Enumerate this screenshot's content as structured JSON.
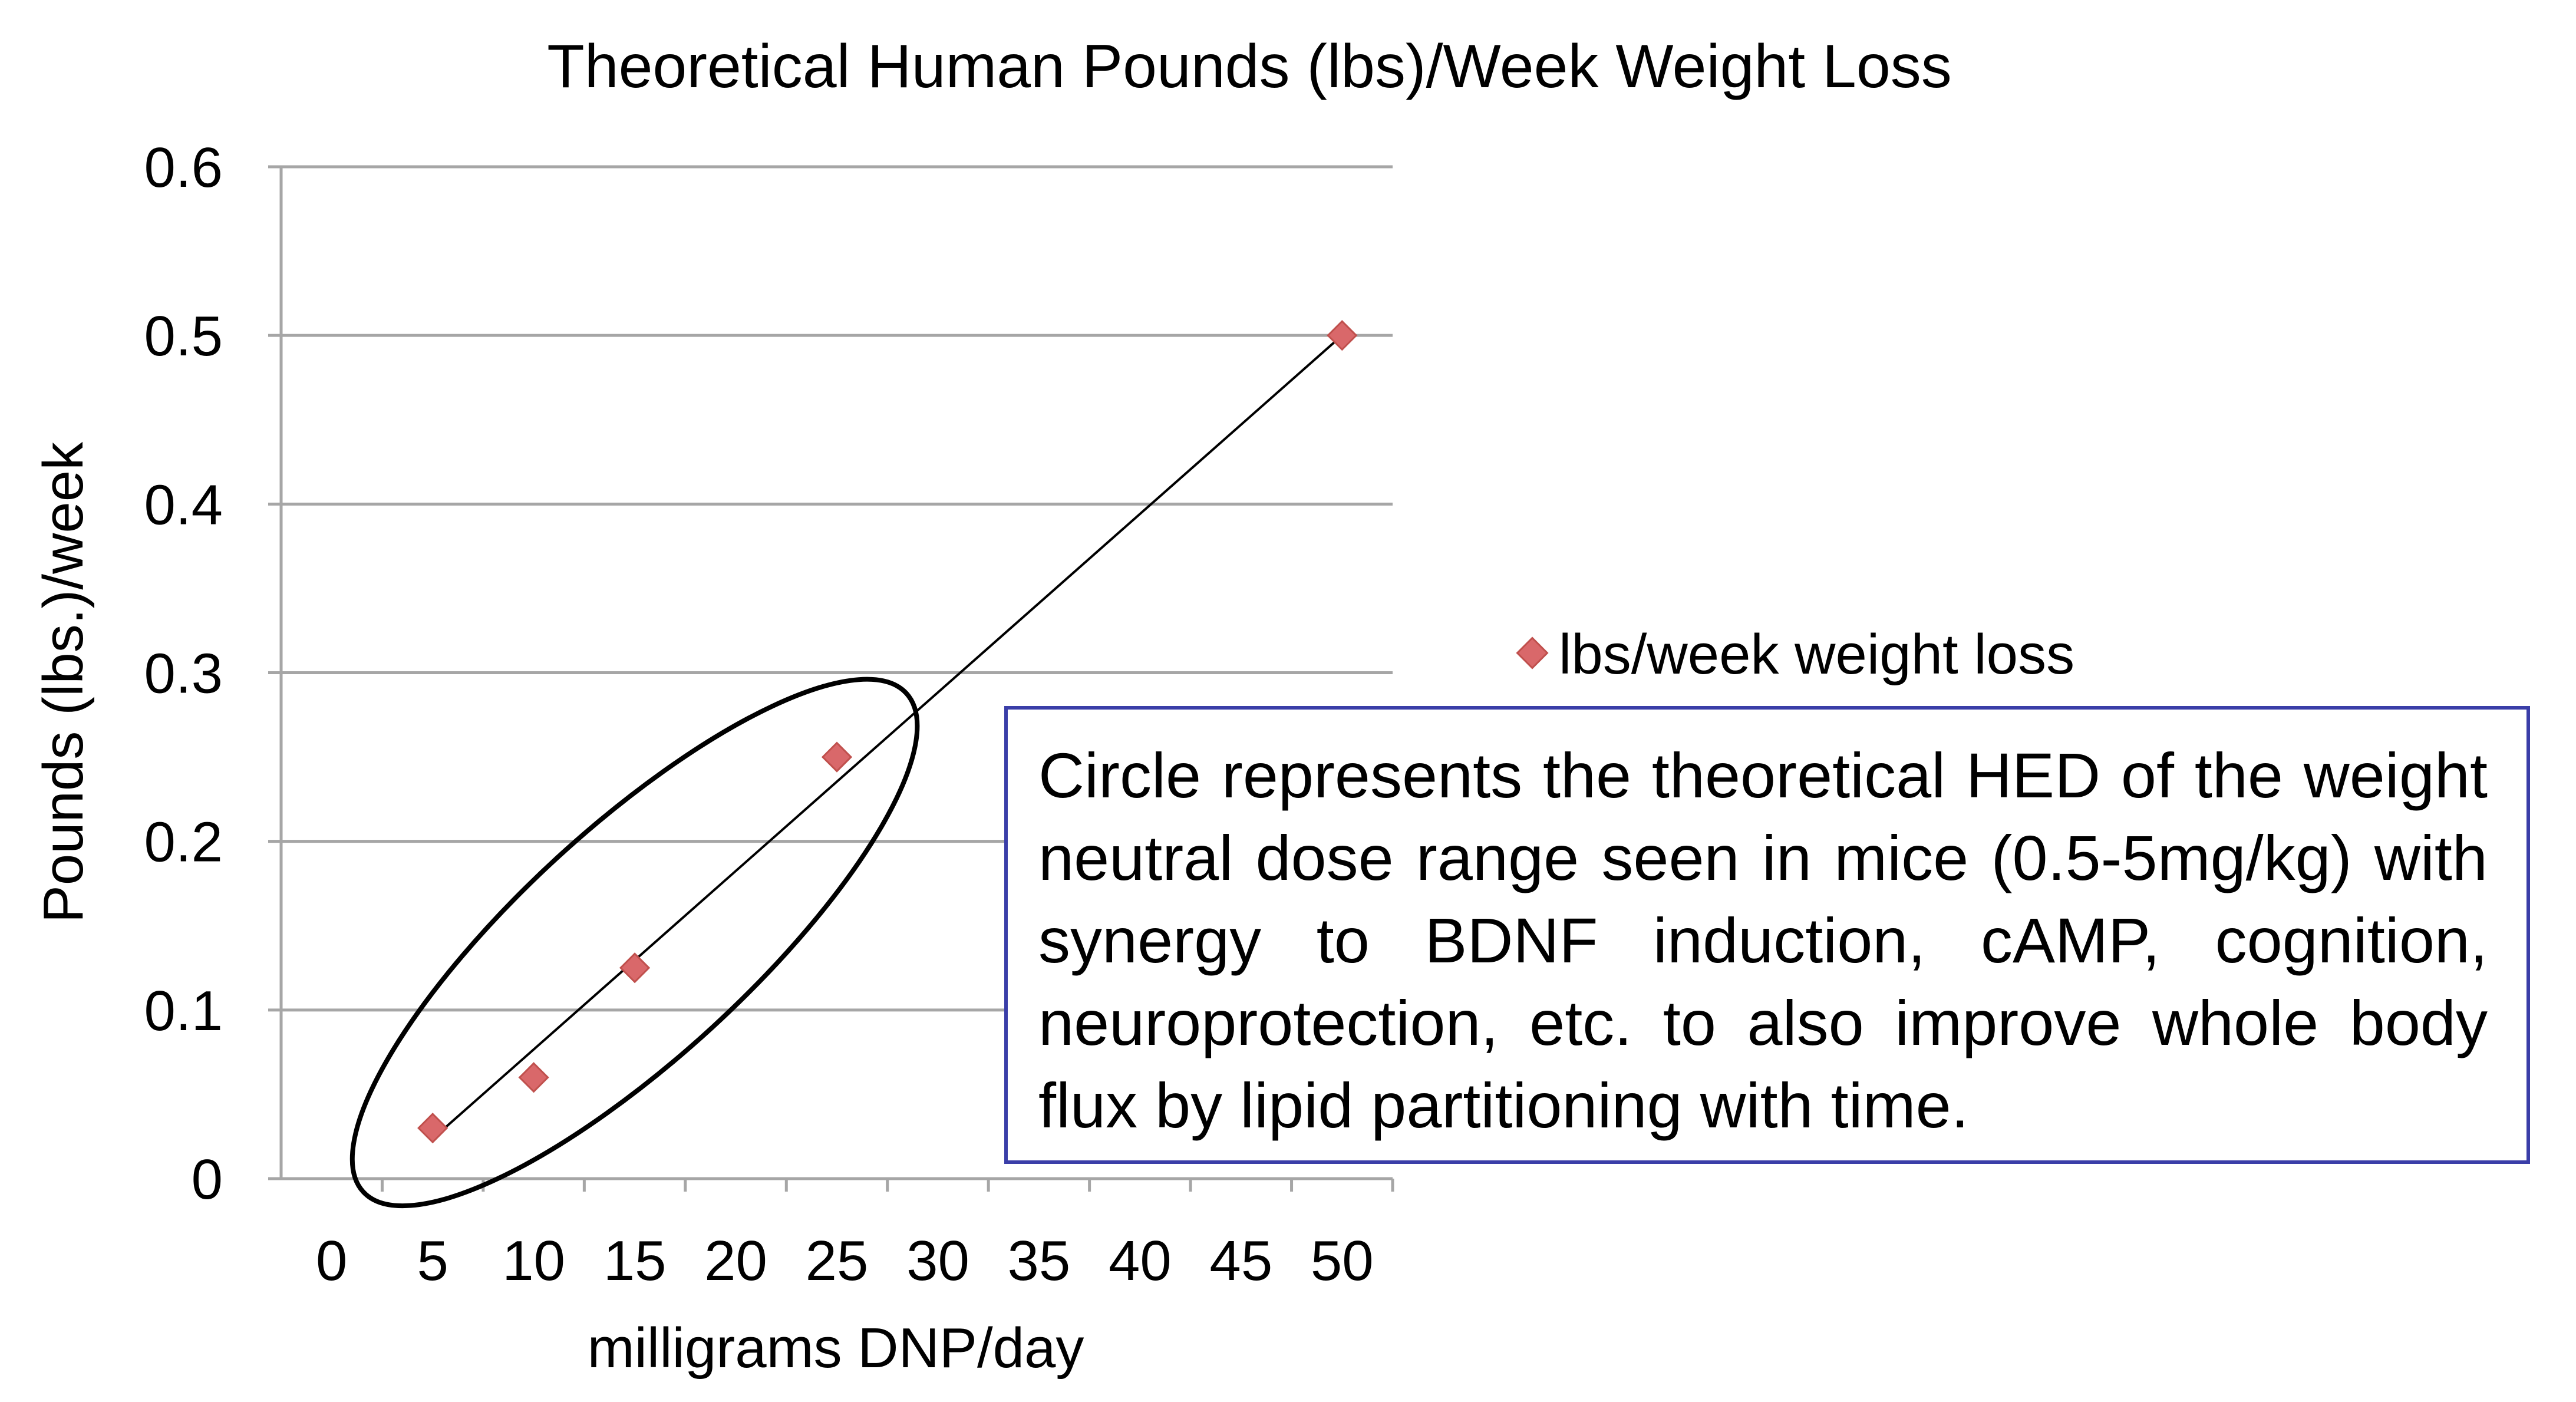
{
  "chart_data": {
    "type": "scatter",
    "title": "Theoretical Human Pounds (lbs)/Week Weight Loss",
    "xlabel": "milligrams DNP/day",
    "ylabel": "Pounds (lbs.)/week",
    "categories": [
      "0",
      "5",
      "10",
      "15",
      "20",
      "25",
      "30",
      "35",
      "40",
      "45",
      "50"
    ],
    "y_ticks": [
      "0",
      "0.1",
      "0.2",
      "0.3",
      "0.4",
      "0.5",
      "0.6"
    ],
    "ylim": [
      0,
      0.6
    ],
    "grid": true,
    "legend_position": "right",
    "series": [
      {
        "name": "lbs/week weight loss",
        "marker": "diamond",
        "color": "#d9686a",
        "x": [
          5,
          10,
          15,
          25,
          50
        ],
        "y": [
          0.03,
          0.06,
          0.125,
          0.25,
          0.5
        ]
      }
    ],
    "trendline": {
      "type": "linear",
      "color": "#000000"
    },
    "annotation": {
      "shape": "ellipse",
      "encloses_x": [
        5,
        10,
        15,
        25
      ]
    }
  },
  "note": {
    "text": "Circle represents the theoretical HED of the weight neutral dose range seen in mice (0.5-5mg/kg) with synergy to BDNF induction, cAMP, cognition, neuroprotection, etc. to also improve whole body flux by lipid partitioning with time.",
    "border_color": "#3a3ea8"
  }
}
